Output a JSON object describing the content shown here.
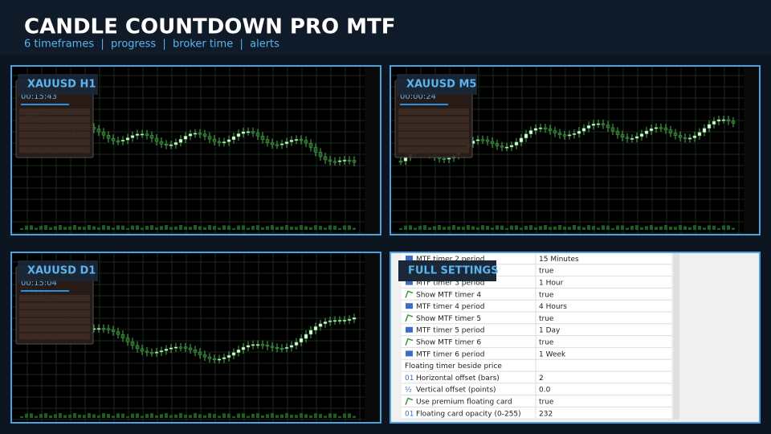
{
  "header": {
    "title": "CANDLE COUNTDOWN PRO MTF",
    "subtitle": "6 timeframes  |  progress  |  broker time  |  alerts"
  },
  "panels": [
    {
      "label": "XAUUSD H1",
      "timer": "00:15:43"
    },
    {
      "label": "XAUUSD M5",
      "timer": "00:00:24"
    },
    {
      "label": "XAUUSD D1",
      "timer": "00:15:04"
    }
  ],
  "settings": {
    "label": "FULL SETTINGS",
    "rows": [
      {
        "icon": "list",
        "name": "MTF timer 2 period",
        "value": "15 Minutes"
      },
      {
        "value": "true"
      },
      {
        "icon": "list",
        "name": "MTF timer 3 period",
        "value": "1 Hour"
      },
      {
        "icon": "toggle",
        "name": "Show MTF timer 4",
        "value": "true"
      },
      {
        "icon": "list",
        "name": "MTF timer 4 period",
        "value": "4 Hours"
      },
      {
        "icon": "toggle",
        "name": "Show MTF timer 5",
        "value": "true"
      },
      {
        "icon": "list",
        "name": "MTF timer 5 period",
        "value": "1 Day"
      },
      {
        "icon": "toggle",
        "name": "Show MTF timer 6",
        "value": "true"
      },
      {
        "icon": "list",
        "name": "MTF timer 6 period",
        "value": "1 Week"
      },
      {
        "name": "Floating timer beside price"
      },
      {
        "icon": "01",
        "name": "Horizontal offset (bars)",
        "value": "2"
      },
      {
        "icon": "½",
        "name": "Vertical offset (points)",
        "value": "0.0"
      },
      {
        "icon": "toggle",
        "name": "Use premium floating card",
        "value": "true"
      },
      {
        "icon": "01",
        "name": "Floating card opacity (0-255)",
        "value": "232"
      }
    ]
  }
}
